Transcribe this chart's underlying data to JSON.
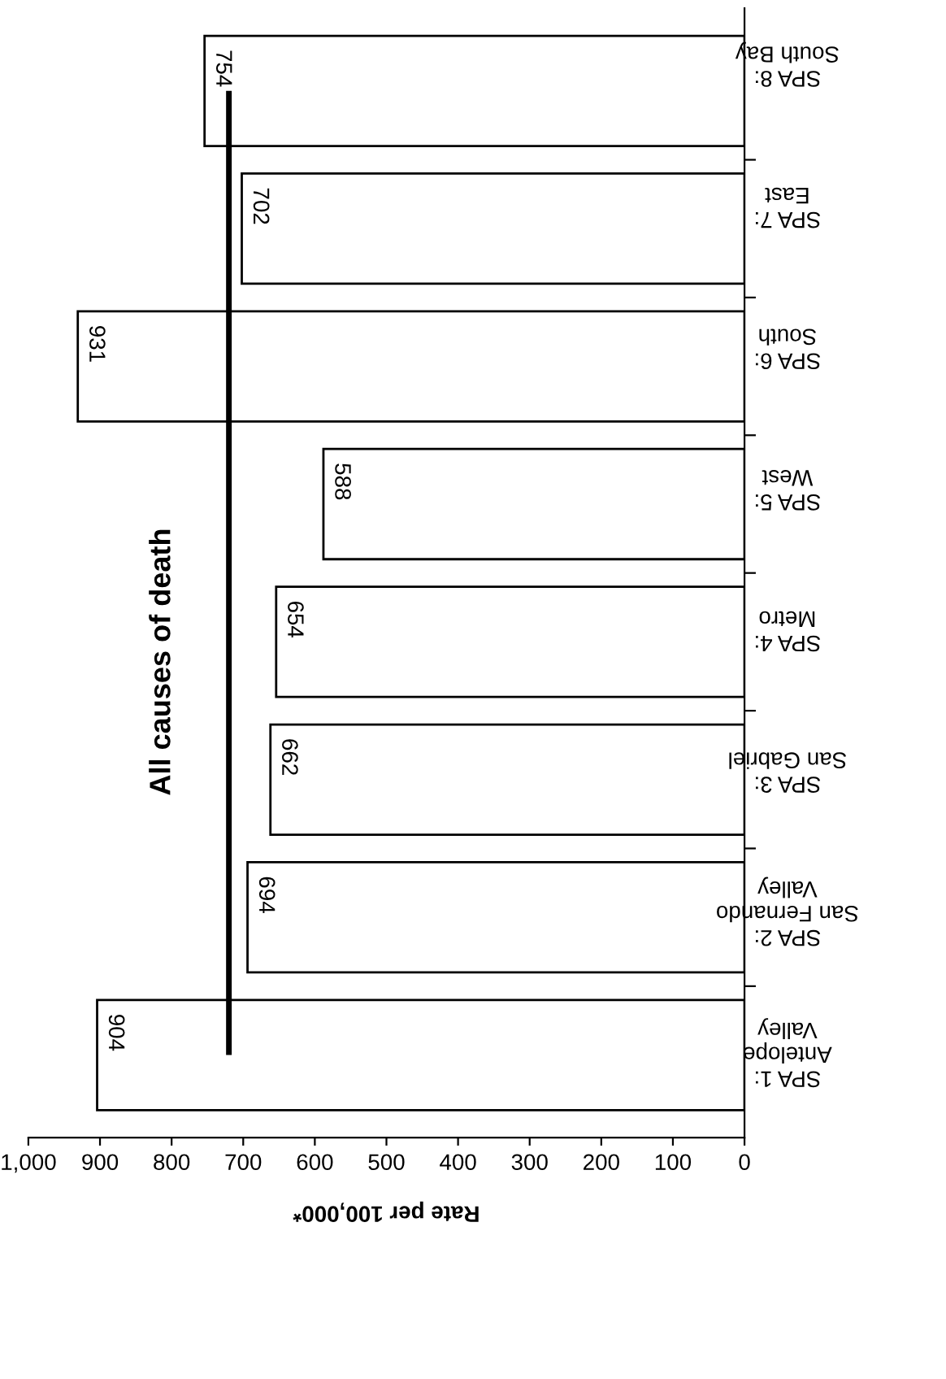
{
  "chart_data": {
    "type": "bar",
    "orientation": "horizontal",
    "title": "All causes of death",
    "xlabel": "Rate per 100,000*",
    "categories": [
      "SPA 8:\nSouth Bay",
      "SPA 7:\nEast",
      "SPA 6:\nSouth",
      "SPA 5:\nWest",
      "SPA 4:\nMetro",
      "SPA 3:\nSan Gabriel",
      "SPA 2:\nSan Fernando\nValley",
      "SPA 1:\nAntelope\nValley"
    ],
    "values": [
      754,
      702,
      931,
      588,
      654,
      662,
      694,
      904
    ],
    "color": "#ffffff",
    "data_labels": true,
    "xlim": [
      1000,
      0
    ],
    "xticks": [
      {
        "value": 1000,
        "label": "1,000"
      },
      900,
      800,
      700,
      600,
      500,
      400,
      300,
      200,
      100,
      0
    ],
    "ref_lines": [
      {
        "axis": "x",
        "value": 720,
        "color": "#000000"
      }
    ],
    "grid": false,
    "legend": false
  }
}
